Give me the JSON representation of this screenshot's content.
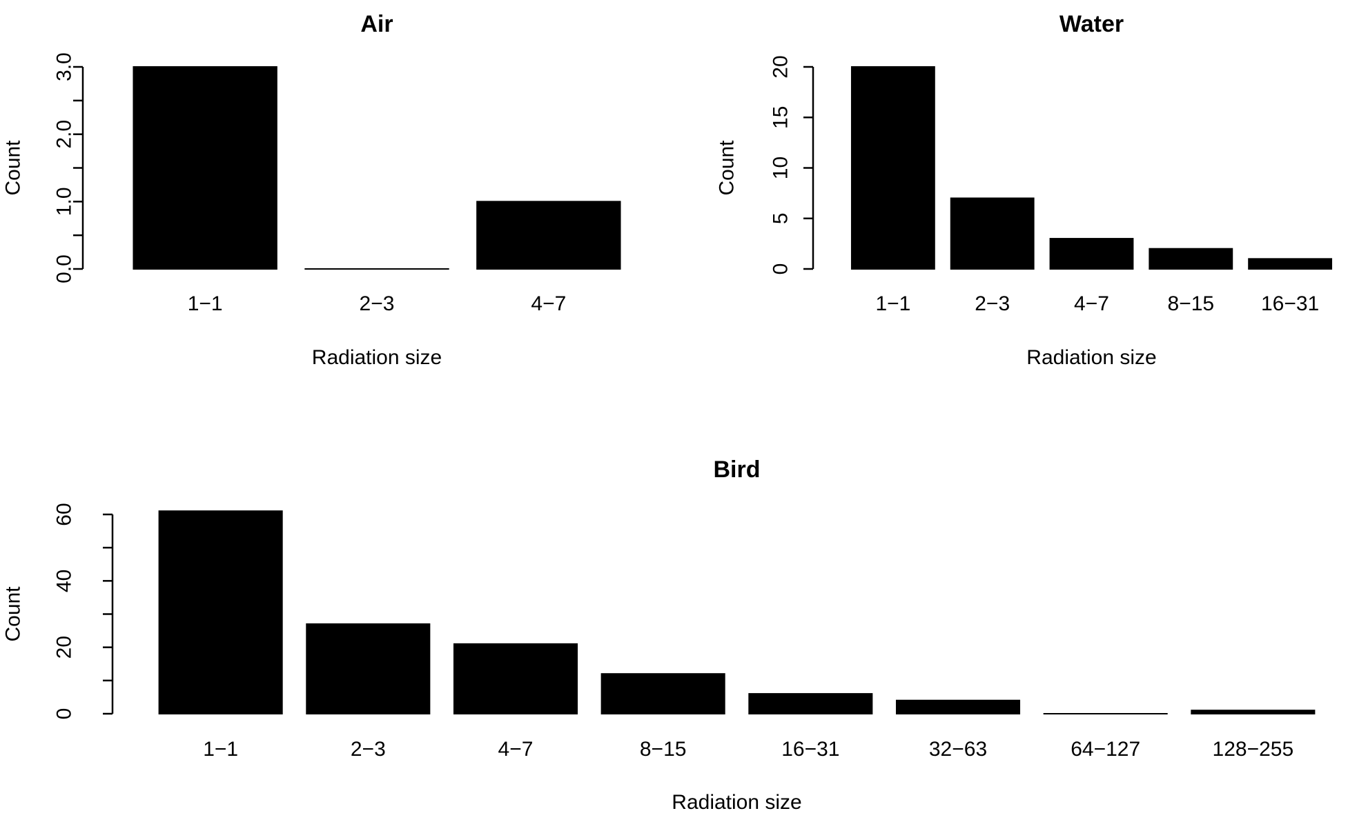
{
  "chart_data": [
    {
      "type": "bar",
      "title": "Air",
      "xlabel": "Radiation size",
      "ylabel": "Count",
      "categories": [
        "1−1",
        "2−3",
        "4−7"
      ],
      "values": [
        3,
        0,
        1
      ],
      "ylim": [
        0,
        3
      ],
      "yticks": [
        0,
        0.5,
        1,
        1.5,
        2,
        2.5,
        3
      ],
      "ytick_labels": [
        "0.0",
        "",
        "1.0",
        "",
        "2.0",
        "",
        "3.0"
      ],
      "grid": false,
      "bar_color": "#000000"
    },
    {
      "type": "bar",
      "title": "Water",
      "xlabel": "Radiation size",
      "ylabel": "Count",
      "categories": [
        "1−1",
        "2−3",
        "4−7",
        "8−15",
        "16−31"
      ],
      "values": [
        20,
        7,
        3,
        2,
        1
      ],
      "ylim": [
        0,
        20
      ],
      "yticks": [
        0,
        5,
        10,
        15,
        20
      ],
      "ytick_labels": [
        "0",
        "5",
        "10",
        "15",
        "20"
      ],
      "grid": false,
      "bar_color": "#000000"
    },
    {
      "type": "bar",
      "title": "Bird",
      "xlabel": "Radiation size",
      "ylabel": "Count",
      "categories": [
        "1−1",
        "2−3",
        "4−7",
        "8−15",
        "16−31",
        "32−63",
        "64−127",
        "128−255"
      ],
      "values": [
        61,
        27,
        21,
        12,
        6,
        4,
        0,
        1
      ],
      "ylim": [
        0,
        60
      ],
      "yticks": [
        0,
        10,
        20,
        30,
        40,
        50,
        60
      ],
      "ytick_labels": [
        "0",
        "",
        "20",
        "",
        "40",
        "",
        "60"
      ],
      "grid": false,
      "bar_color": "#000000"
    }
  ]
}
